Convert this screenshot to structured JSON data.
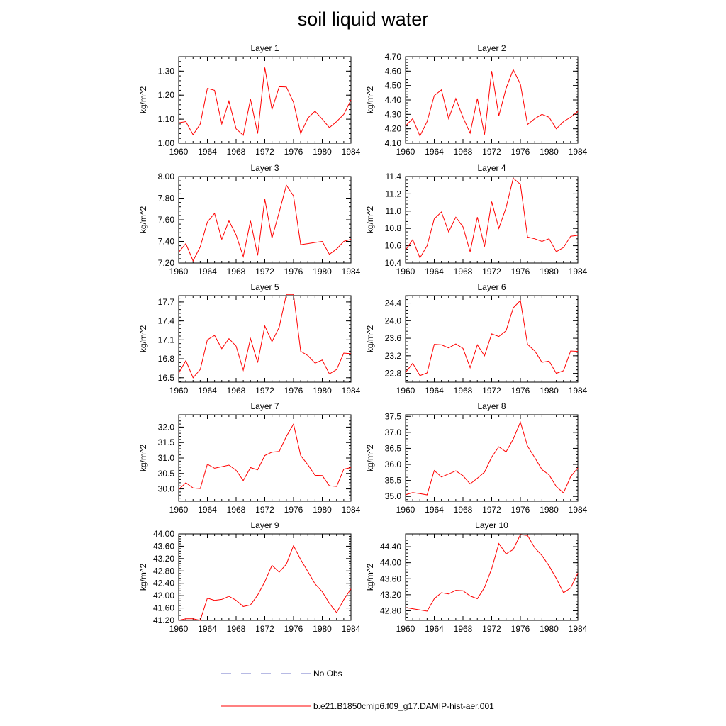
{
  "title": "soil liquid water",
  "legend": {
    "entries": [
      {
        "label": "No Obs",
        "color": "#6f74c8",
        "style": "dashed"
      },
      {
        "label": "b.e21.B1850cmip6.f09_g17.DAMIP-hist-aer.001",
        "color": "#ff0000",
        "style": "solid"
      }
    ]
  },
  "chart_data": [
    {
      "type": "line",
      "title": "Layer 1",
      "xlabel": "",
      "ylabel": "kg/m^2",
      "xlim": [
        1960,
        1984
      ],
      "ylim": [
        1.0,
        1.36
      ],
      "xticks": [
        "1960",
        "1964",
        "1968",
        "1972",
        "1976",
        "1980",
        "1984"
      ],
      "yticks": [
        "1.00",
        "1.10",
        "1.20",
        "1.30"
      ],
      "series": [
        {
          "x": [
            1960,
            1961,
            1962,
            1963,
            1964,
            1965,
            1966,
            1967,
            1968,
            1969,
            1970,
            1971,
            1972,
            1973,
            1974,
            1975,
            1976,
            1977,
            1978,
            1979,
            1980,
            1981,
            1982,
            1983,
            1984
          ],
          "values": [
            1.085,
            1.09,
            1.035,
            1.08,
            1.228,
            1.22,
            1.08,
            1.175,
            1.06,
            1.033,
            1.183,
            1.04,
            1.315,
            1.14,
            1.235,
            1.234,
            1.17,
            1.04,
            1.105,
            1.133,
            1.1,
            1.065,
            1.09,
            1.12,
            1.18
          ]
        }
      ]
    },
    {
      "type": "line",
      "title": "Layer 2",
      "xlabel": "",
      "ylabel": "kg/m^2",
      "xlim": [
        1960,
        1984
      ],
      "ylim": [
        4.1,
        4.7
      ],
      "xticks": [
        "1960",
        "1964",
        "1968",
        "1972",
        "1976",
        "1980",
        "1984"
      ],
      "yticks": [
        "4.10",
        "4.20",
        "4.30",
        "4.40",
        "4.50",
        "4.60",
        "4.70"
      ],
      "series": [
        {
          "x": [
            1960,
            1961,
            1962,
            1963,
            1964,
            1965,
            1966,
            1967,
            1968,
            1969,
            1970,
            1971,
            1972,
            1973,
            1974,
            1975,
            1976,
            1977,
            1978,
            1979,
            1980,
            1981,
            1982,
            1983,
            1984
          ],
          "values": [
            4.22,
            4.27,
            4.15,
            4.25,
            4.43,
            4.47,
            4.27,
            4.41,
            4.28,
            4.17,
            4.41,
            4.16,
            4.6,
            4.29,
            4.48,
            4.61,
            4.51,
            4.23,
            4.27,
            4.3,
            4.28,
            4.2,
            4.25,
            4.28,
            4.32
          ]
        }
      ]
    },
    {
      "type": "line",
      "title": "Layer 3",
      "xlabel": "",
      "ylabel": "kg/m^2",
      "xlim": [
        1960,
        1984
      ],
      "ylim": [
        7.2,
        8.0
      ],
      "xticks": [
        "1960",
        "1964",
        "1968",
        "1972",
        "1976",
        "1980",
        "1984"
      ],
      "yticks": [
        "7.20",
        "7.40",
        "7.60",
        "7.80",
        "8.00"
      ],
      "series": [
        {
          "x": [
            1960,
            1961,
            1962,
            1963,
            1964,
            1965,
            1966,
            1967,
            1968,
            1969,
            1970,
            1971,
            1972,
            1973,
            1974,
            1975,
            1976,
            1977,
            1978,
            1979,
            1980,
            1981,
            1982,
            1983,
            1984
          ],
          "values": [
            7.3,
            7.38,
            7.22,
            7.35,
            7.58,
            7.66,
            7.42,
            7.59,
            7.46,
            7.26,
            7.59,
            7.27,
            7.79,
            7.43,
            7.67,
            7.92,
            7.82,
            7.37,
            7.38,
            7.39,
            7.4,
            7.28,
            7.33,
            7.4,
            7.42
          ]
        }
      ]
    },
    {
      "type": "line",
      "title": "Layer 4",
      "xlabel": "",
      "ylabel": "kg/m^2",
      "xlim": [
        1960,
        1984
      ],
      "ylim": [
        10.4,
        11.4
      ],
      "xticks": [
        "1960",
        "1964",
        "1968",
        "1972",
        "1976",
        "1980",
        "1984"
      ],
      "yticks": [
        "10.4",
        "10.6",
        "10.8",
        "11.0",
        "11.2",
        "11.4"
      ],
      "series": [
        {
          "x": [
            1960,
            1961,
            1962,
            1963,
            1964,
            1965,
            1966,
            1967,
            1968,
            1969,
            1970,
            1971,
            1972,
            1973,
            1974,
            1975,
            1976,
            1977,
            1978,
            1979,
            1980,
            1981,
            1982,
            1983,
            1984
          ],
          "values": [
            10.55,
            10.67,
            10.46,
            10.6,
            10.91,
            10.99,
            10.76,
            10.93,
            10.82,
            10.53,
            10.93,
            10.59,
            11.11,
            10.8,
            11.04,
            11.38,
            11.31,
            10.7,
            10.68,
            10.65,
            10.68,
            10.53,
            10.58,
            10.71,
            10.72
          ]
        }
      ]
    },
    {
      "type": "line",
      "title": "Layer 5",
      "xlabel": "",
      "ylabel": "kg/m^2",
      "xlim": [
        1960,
        1984
      ],
      "ylim": [
        16.43,
        17.8
      ],
      "xticks": [
        "1960",
        "1964",
        "1968",
        "1972",
        "1976",
        "1980",
        "1984"
      ],
      "yticks": [
        "16.5",
        "16.8",
        "17.1",
        "17.4",
        "17.7"
      ],
      "series": [
        {
          "x": [
            1960,
            1961,
            1962,
            1963,
            1964,
            1965,
            1966,
            1967,
            1968,
            1969,
            1970,
            1971,
            1972,
            1973,
            1974,
            1975,
            1976,
            1977,
            1978,
            1979,
            1980,
            1981,
            1982,
            1983,
            1984
          ],
          "values": [
            16.57,
            16.77,
            16.5,
            16.63,
            17.1,
            17.17,
            16.96,
            17.12,
            17.0,
            16.62,
            17.12,
            16.74,
            17.32,
            17.07,
            17.3,
            17.82,
            17.82,
            16.92,
            16.85,
            16.73,
            16.78,
            16.56,
            16.63,
            16.89,
            16.88
          ]
        }
      ]
    },
    {
      "type": "line",
      "title": "Layer 6",
      "xlabel": "",
      "ylabel": "kg/m^2",
      "xlim": [
        1960,
        1984
      ],
      "ylim": [
        22.6,
        24.57
      ],
      "xticks": [
        "1960",
        "1964",
        "1968",
        "1972",
        "1976",
        "1980",
        "1984"
      ],
      "yticks": [
        "22.8",
        "23.2",
        "23.6",
        "24.0",
        "24.4"
      ],
      "series": [
        {
          "x": [
            1960,
            1961,
            1962,
            1963,
            1964,
            1965,
            1966,
            1967,
            1968,
            1969,
            1970,
            1971,
            1972,
            1973,
            1974,
            1975,
            1976,
            1977,
            1978,
            1979,
            1980,
            1981,
            1982,
            1983,
            1984
          ],
          "values": [
            22.82,
            23.03,
            22.75,
            22.81,
            23.46,
            23.45,
            23.38,
            23.47,
            23.37,
            22.93,
            23.45,
            23.2,
            23.7,
            23.64,
            23.77,
            24.29,
            24.46,
            23.46,
            23.31,
            23.05,
            23.08,
            22.8,
            22.86,
            23.31,
            23.3
          ]
        }
      ]
    },
    {
      "type": "line",
      "title": "Layer 7",
      "xlabel": "",
      "ylabel": "kg/m^2",
      "xlim": [
        1960,
        1984
      ],
      "ylim": [
        29.6,
        32.4
      ],
      "xticks": [
        "1960",
        "1964",
        "1968",
        "1972",
        "1976",
        "1980",
        "1984"
      ],
      "yticks": [
        "30.0",
        "30.5",
        "31.0",
        "31.5",
        "32.0"
      ],
      "series": [
        {
          "x": [
            1960,
            1961,
            1962,
            1963,
            1964,
            1965,
            1966,
            1967,
            1968,
            1969,
            1970,
            1971,
            1972,
            1973,
            1974,
            1975,
            1976,
            1977,
            1978,
            1979,
            1980,
            1981,
            1982,
            1983,
            1984
          ],
          "values": [
            29.98,
            30.2,
            30.03,
            30.01,
            30.8,
            30.67,
            30.72,
            30.77,
            30.6,
            30.27,
            30.69,
            30.62,
            31.08,
            31.19,
            31.21,
            31.7,
            32.1,
            31.08,
            30.78,
            30.44,
            30.43,
            30.1,
            30.08,
            30.64,
            30.69
          ]
        }
      ]
    },
    {
      "type": "line",
      "title": "Layer 8",
      "xlabel": "",
      "ylabel": "kg/m^2",
      "xlim": [
        1960,
        1984
      ],
      "ylim": [
        34.85,
        37.55
      ],
      "xticks": [
        "1960",
        "1964",
        "1968",
        "1972",
        "1976",
        "1980",
        "1984"
      ],
      "yticks": [
        "35.0",
        "35.5",
        "36.0",
        "36.5",
        "37.0",
        "37.5"
      ],
      "series": [
        {
          "x": [
            1960,
            1961,
            1962,
            1963,
            1964,
            1965,
            1966,
            1967,
            1968,
            1969,
            1970,
            1971,
            1972,
            1973,
            1974,
            1975,
            1976,
            1977,
            1978,
            1979,
            1980,
            1981,
            1982,
            1983,
            1984
          ],
          "values": [
            35.05,
            35.12,
            35.09,
            35.05,
            35.81,
            35.61,
            35.7,
            35.8,
            35.65,
            35.39,
            35.57,
            35.76,
            36.23,
            36.55,
            36.39,
            36.79,
            37.32,
            36.57,
            36.21,
            35.84,
            35.67,
            35.31,
            35.11,
            35.62,
            35.89
          ]
        }
      ]
    },
    {
      "type": "line",
      "title": "Layer 9",
      "xlabel": "",
      "ylabel": "kg/m^2",
      "xlim": [
        1960,
        1984
      ],
      "ylim": [
        41.2,
        44.0
      ],
      "xticks": [
        "1960",
        "1964",
        "1968",
        "1972",
        "1976",
        "1980",
        "1984"
      ],
      "yticks": [
        "41.20",
        "41.60",
        "42.00",
        "42.40",
        "42.80",
        "43.20",
        "43.60",
        "44.00"
      ],
      "series": [
        {
          "x": [
            1960,
            1961,
            1962,
            1963,
            1964,
            1965,
            1966,
            1967,
            1968,
            1969,
            1970,
            1971,
            1972,
            1973,
            1974,
            1975,
            1976,
            1977,
            1978,
            1979,
            1980,
            1981,
            1982,
            1983,
            1984
          ],
          "values": [
            41.2,
            41.25,
            41.25,
            41.2,
            41.92,
            41.85,
            41.88,
            41.98,
            41.85,
            41.65,
            41.7,
            42.02,
            42.45,
            42.98,
            42.76,
            43.02,
            43.62,
            43.17,
            42.78,
            42.38,
            42.13,
            41.75,
            41.45,
            41.87,
            42.22
          ]
        }
      ]
    },
    {
      "type": "line",
      "title": "Layer 10",
      "xlabel": "",
      "ylabel": "kg/m^2",
      "xlim": [
        1960,
        1984
      ],
      "ylim": [
        42.56,
        44.72
      ],
      "xticks": [
        "1960",
        "1964",
        "1968",
        "1972",
        "1976",
        "1980",
        "1984"
      ],
      "yticks": [
        "42.80",
        "43.20",
        "43.60",
        "44.00",
        "44.40"
      ],
      "series": [
        {
          "x": [
            1960,
            1961,
            1962,
            1963,
            1964,
            1965,
            1966,
            1967,
            1968,
            1969,
            1970,
            1971,
            1972,
            1973,
            1974,
            1975,
            1976,
            1977,
            1978,
            1979,
            1980,
            1981,
            1982,
            1983,
            1984
          ],
          "values": [
            42.88,
            42.85,
            42.82,
            42.79,
            43.1,
            43.25,
            43.22,
            43.31,
            43.3,
            43.17,
            43.1,
            43.38,
            43.85,
            44.48,
            44.22,
            44.33,
            44.7,
            44.68,
            44.37,
            44.18,
            43.92,
            43.61,
            43.25,
            43.37,
            43.74
          ]
        }
      ]
    }
  ]
}
